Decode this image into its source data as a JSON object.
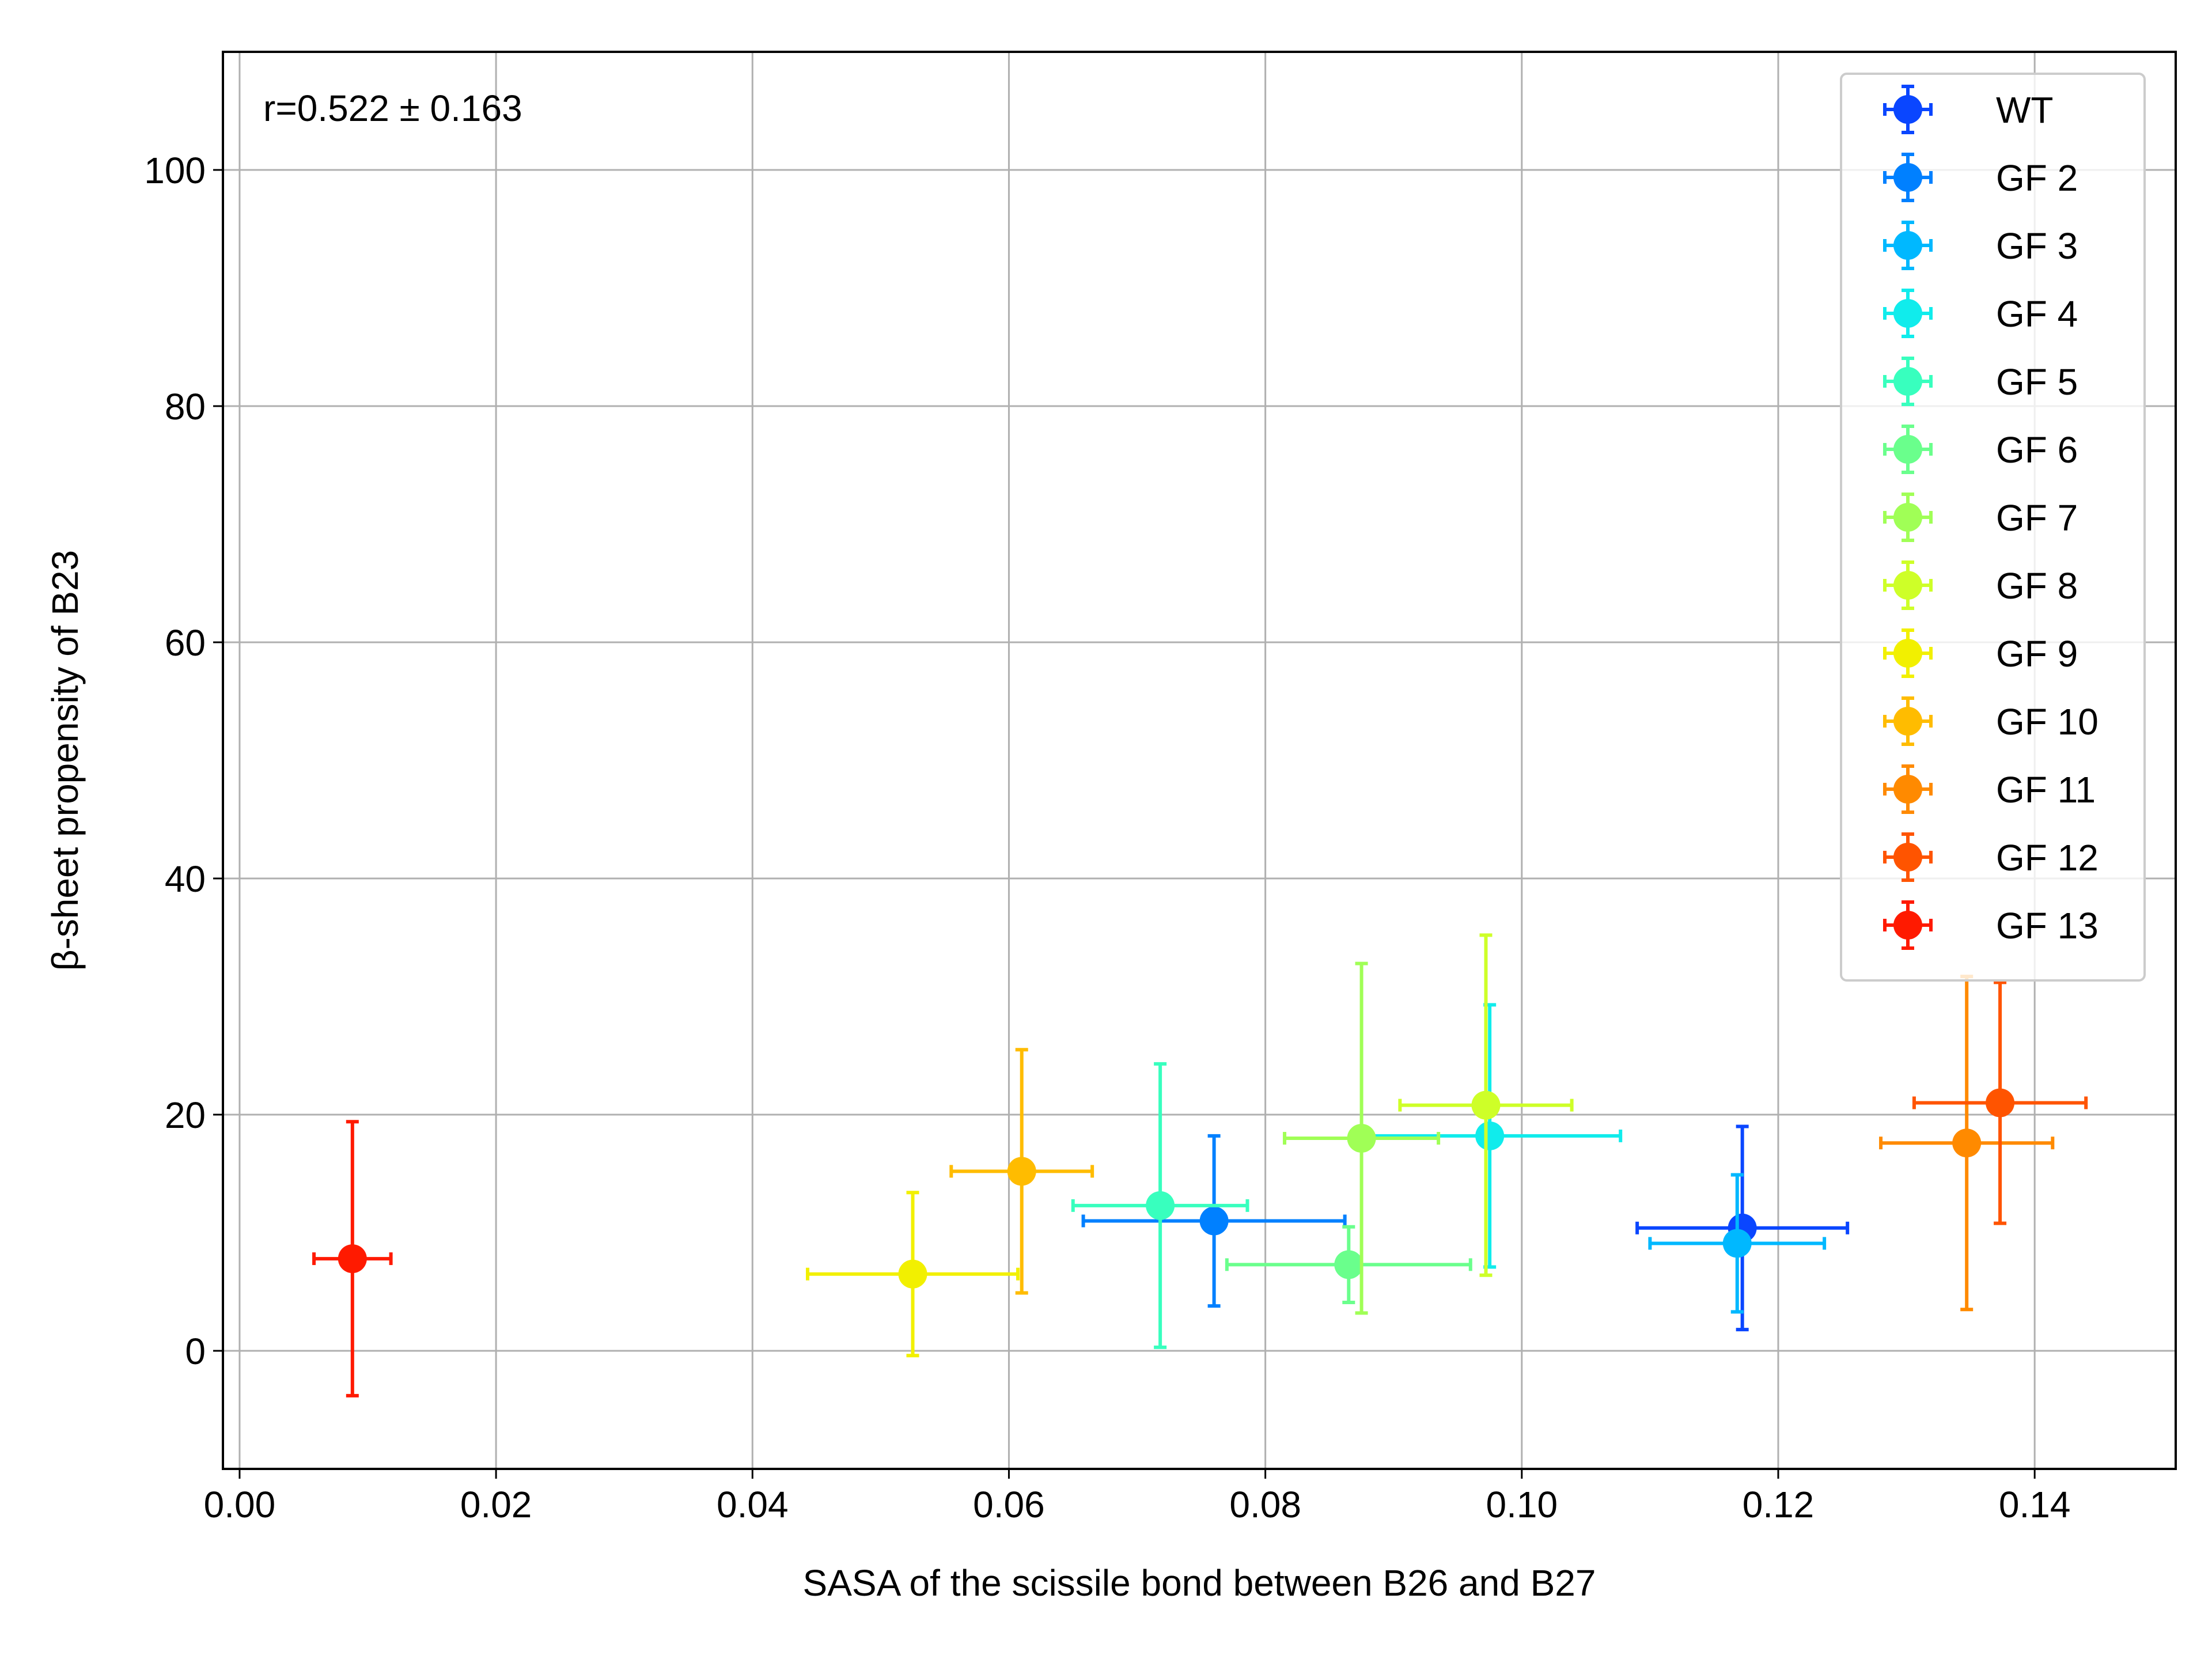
{
  "chart_data": {
    "type": "scatter",
    "title": "",
    "xlabel": "SASA of the scissile bond between B26 and B27",
    "ylabel": "β-sheet propensity of B23",
    "xlim": [
      -0.0013,
      0.151
    ],
    "ylim": [
      -10,
      110
    ],
    "x_ticks": [
      0.0,
      0.02,
      0.04,
      0.06,
      0.08,
      0.1,
      0.12,
      0.14
    ],
    "x_tick_labels": [
      "0.00",
      "0.02",
      "0.04",
      "0.06",
      "0.08",
      "0.10",
      "0.12",
      "0.14"
    ],
    "y_ticks": [
      0,
      20,
      40,
      60,
      80,
      100
    ],
    "y_tick_labels": [
      "0",
      "20",
      "40",
      "60",
      "80",
      "100"
    ],
    "grid": true,
    "legend_position": "top-right",
    "annotation": "r=0.522 ± 0.163",
    "series": [
      {
        "name": "WT",
        "color": "#0a46ff",
        "x": 0.1172,
        "y": 10.4,
        "xerr": 0.0082,
        "yerr": 8.6
      },
      {
        "name": "GF 2",
        "color": "#0080ff",
        "x": 0.076,
        "y": 11.0,
        "xerr": 0.0102,
        "yerr": 7.2
      },
      {
        "name": "GF 3",
        "color": "#00b8ff",
        "x": 0.1168,
        "y": 9.1,
        "xerr": 0.0068,
        "yerr": 5.8
      },
      {
        "name": "GF 4",
        "color": "#10ecec",
        "x": 0.0975,
        "y": 18.2,
        "xerr": 0.0102,
        "yerr": 11.1
      },
      {
        "name": "GF 5",
        "color": "#38ffbe",
        "x": 0.0718,
        "y": 12.3,
        "xerr": 0.0068,
        "yerr": 12.0
      },
      {
        "name": "GF 6",
        "color": "#6aff8c",
        "x": 0.0865,
        "y": 7.3,
        "xerr": 0.0095,
        "yerr": 3.2
      },
      {
        "name": "GF 7",
        "color": "#a0ff56",
        "x": 0.0875,
        "y": 18.0,
        "xerr": 0.006,
        "yerr": 14.8
      },
      {
        "name": "GF 8",
        "color": "#ceff28",
        "x": 0.0972,
        "y": 20.8,
        "xerr": 0.0067,
        "yerr": 14.4
      },
      {
        "name": "GF 9",
        "color": "#f2f000",
        "x": 0.0525,
        "y": 6.5,
        "xerr": 0.0082,
        "yerr": 6.9
      },
      {
        "name": "GF 10",
        "color": "#ffbc00",
        "x": 0.061,
        "y": 15.2,
        "xerr": 0.0055,
        "yerr": 10.3
      },
      {
        "name": "GF 11",
        "color": "#ff8a00",
        "x": 0.1347,
        "y": 17.6,
        "xerr": 0.0067,
        "yerr": 14.1
      },
      {
        "name": "GF 12",
        "color": "#ff5400",
        "x": 0.1373,
        "y": 21.0,
        "xerr": 0.0067,
        "yerr": 10.2
      },
      {
        "name": "GF 13",
        "color": "#ff1a00",
        "x": 0.0088,
        "y": 7.8,
        "xerr": 0.003,
        "yerr": 11.6
      }
    ]
  }
}
